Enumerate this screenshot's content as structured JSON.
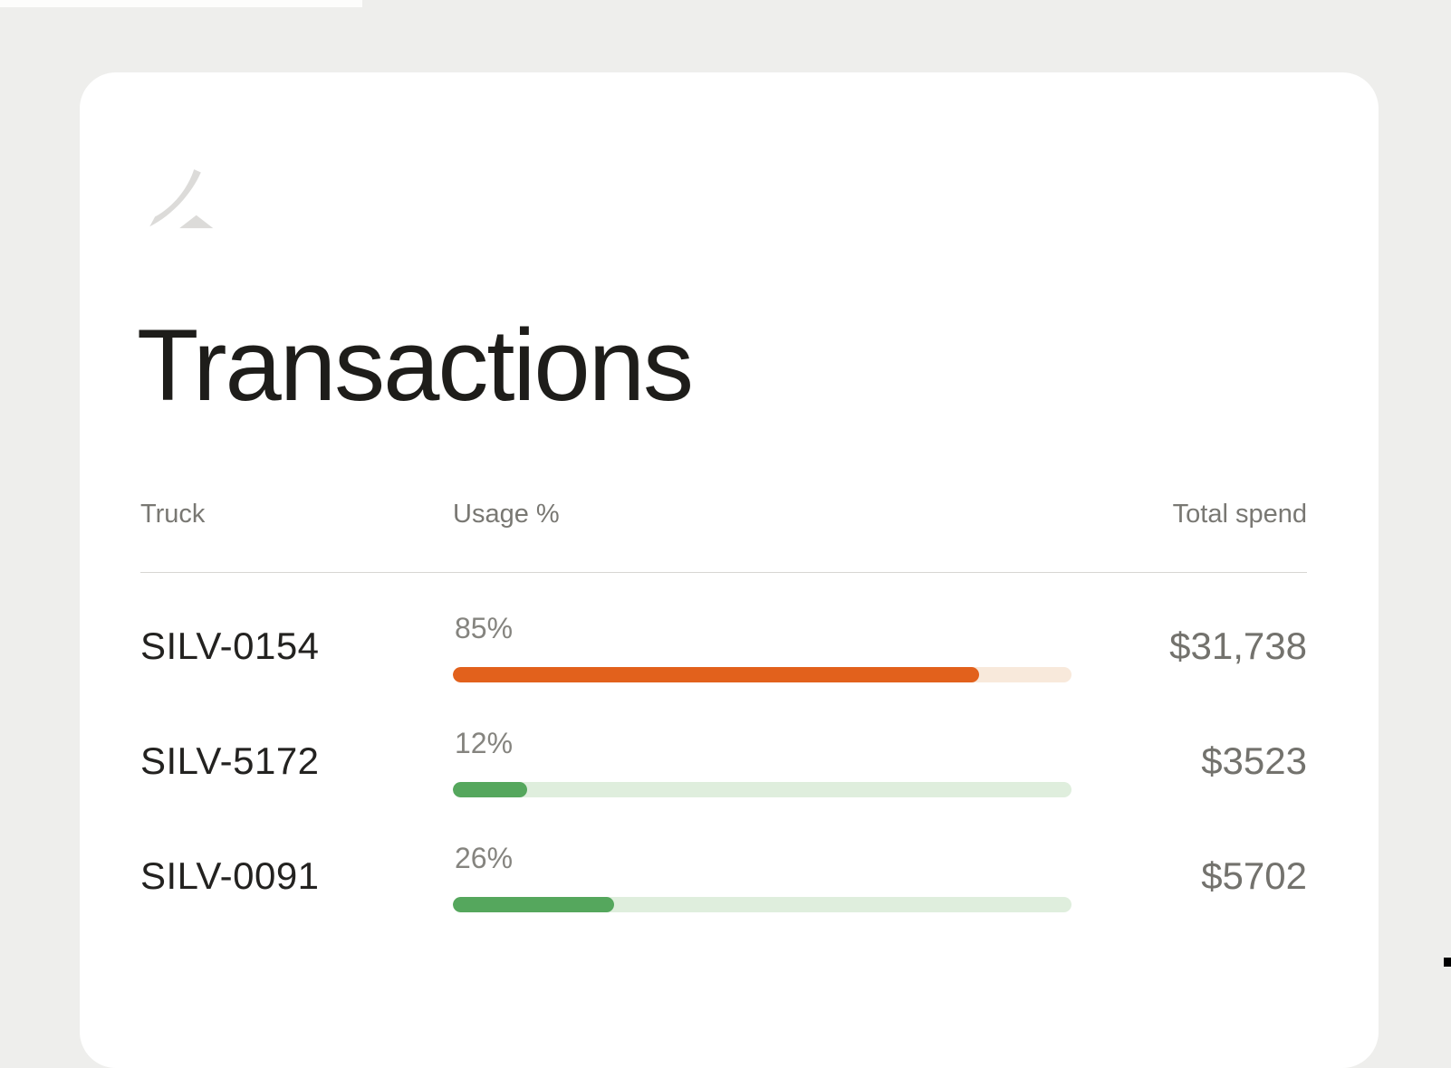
{
  "title": "Transactions",
  "logo": {
    "name": "brand-swoosh-logo",
    "color": "#dcdbd9"
  },
  "table": {
    "headers": {
      "truck": "Truck",
      "usage": "Usage %",
      "spend": "Total spend"
    },
    "rows": [
      {
        "truck": "SILV-0154",
        "usage_pct": 85,
        "usage_label": "85%",
        "spend": "$31,738",
        "bar_color": "#e2611c",
        "track_color": "#f8e9db"
      },
      {
        "truck": "SILV-5172",
        "usage_pct": 12,
        "usage_label": "12%",
        "spend": "$3523",
        "bar_color": "#55a75d",
        "track_color": "#dfeedd"
      },
      {
        "truck": "SILV-0091",
        "usage_pct": 26,
        "usage_label": "26%",
        "spend": "$5702",
        "bar_color": "#55a75d",
        "track_color": "#dfeedd"
      }
    ]
  },
  "colors": {
    "page_background": "#eeeeec",
    "card_background": "#ffffff",
    "title_text": "#1e1d1a",
    "header_text": "#797873",
    "truck_text": "#232220",
    "spend_text": "#73726d",
    "divider": "#d7d6d3",
    "orange_accent": "#e2611c",
    "green_accent": "#55a75d"
  }
}
